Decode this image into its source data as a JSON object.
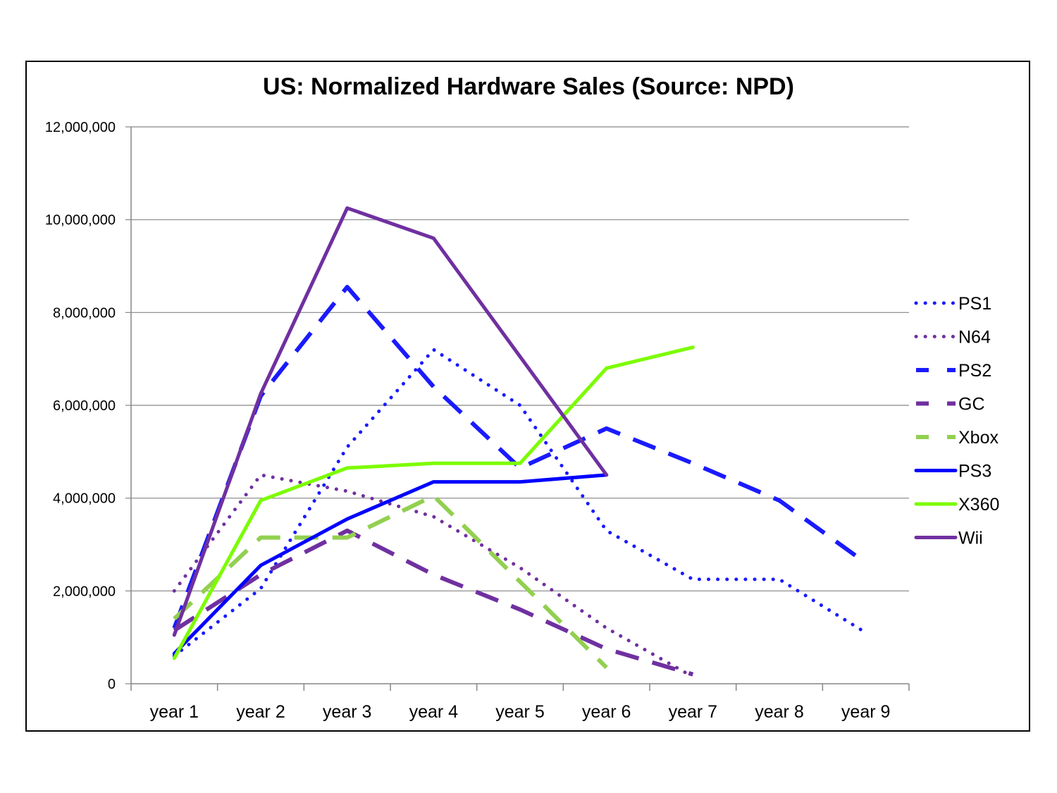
{
  "chart_data": {
    "type": "line",
    "title": "US: Normalized Hardware Sales (Source: NPD)",
    "xlabel": "",
    "ylabel": "",
    "categories": [
      "year 1",
      "year 2",
      "year 3",
      "year 4",
      "year 5",
      "year 6",
      "year 7",
      "year 8",
      "year 9"
    ],
    "ylim": [
      0,
      12000000
    ],
    "yticks": [
      0,
      2000000,
      4000000,
      6000000,
      8000000,
      10000000,
      12000000
    ],
    "ytick_labels": [
      "0",
      "2,000,000",
      "4,000,000",
      "6,000,000",
      "8,000,000",
      "10,000,000",
      "12,000,000"
    ],
    "grid": "horizontal",
    "legend_position": "right",
    "series": [
      {
        "name": "PS1",
        "color": "#1a1aff",
        "style": "dotted",
        "values": [
          600000,
          2050000,
          5100000,
          7200000,
          6000000,
          3300000,
          2250000,
          2250000,
          1100000
        ]
      },
      {
        "name": "N64",
        "color": "#7030a0",
        "style": "dotted",
        "values": [
          2000000,
          4500000,
          4150000,
          3600000,
          2500000,
          1200000,
          150000,
          null,
          null
        ]
      },
      {
        "name": "PS2",
        "color": "#1a1aff",
        "style": "dashed",
        "values": [
          1200000,
          6200000,
          8550000,
          6400000,
          4650000,
          5500000,
          4750000,
          3950000,
          2600000
        ]
      },
      {
        "name": "GC",
        "color": "#7030a0",
        "style": "dashed",
        "values": [
          1150000,
          2350000,
          3300000,
          2350000,
          1600000,
          750000,
          200000,
          null,
          null
        ]
      },
      {
        "name": "Xbox",
        "color": "#92d050",
        "style": "dashed",
        "values": [
          1400000,
          3150000,
          3150000,
          4050000,
          2200000,
          350000,
          null,
          null,
          null
        ]
      },
      {
        "name": "PS3",
        "color": "#0000ff",
        "style": "solid",
        "values": [
          650000,
          2550000,
          3550000,
          4350000,
          4350000,
          4500000,
          null,
          null,
          null
        ]
      },
      {
        "name": "X360",
        "color": "#7cfc00",
        "style": "solid",
        "values": [
          550000,
          3950000,
          4650000,
          4750000,
          4750000,
          6800000,
          7250000,
          null,
          null
        ]
      },
      {
        "name": "Wii",
        "color": "#7030a0",
        "style": "solid",
        "values": [
          1050000,
          6250000,
          10250000,
          9600000,
          7050000,
          4500000,
          null,
          null,
          null
        ]
      }
    ]
  }
}
